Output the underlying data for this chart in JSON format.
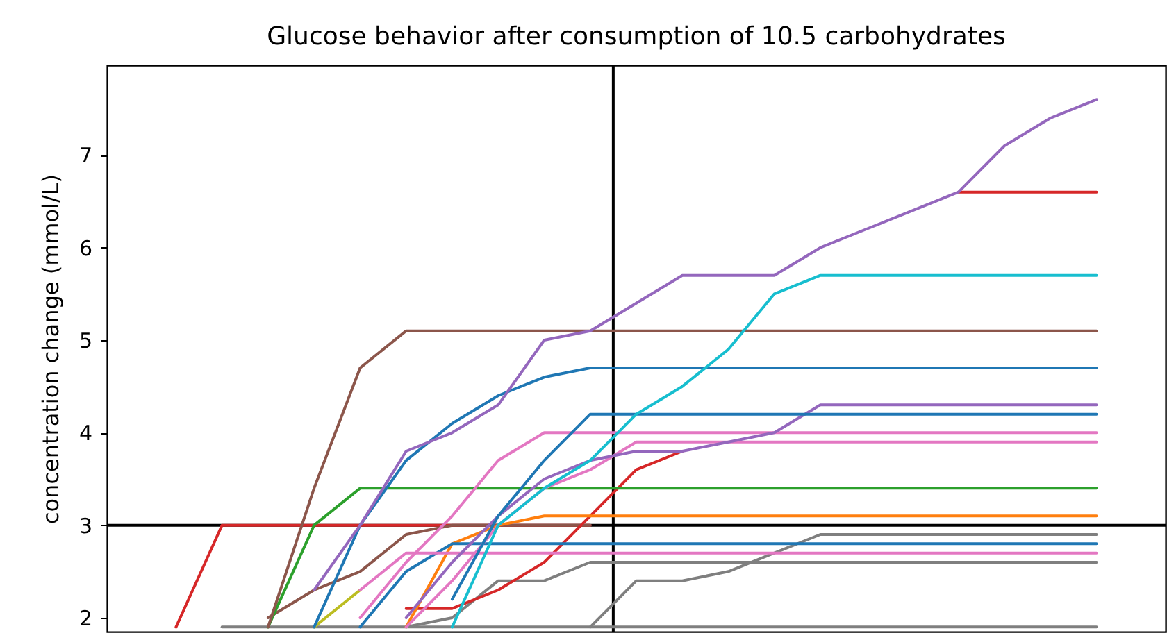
{
  "chart_data": {
    "type": "line",
    "title": "Glucose behavior after consumption of 10.5 carbohydrates",
    "ylabel": "concentration change (mmol/L)",
    "categories": [
      null,
      null,
      null,
      null,
      null,
      null,
      null,
      null,
      null,
      null,
      null,
      null,
      null,
      null,
      null,
      null,
      null,
      null,
      null,
      null,
      null,
      null,
      null
    ],
    "ylim": [
      1.85,
      7.97
    ],
    "yticks": [
      2,
      3,
      4,
      5,
      6,
      7
    ],
    "tick_labels": "y",
    "grid": false,
    "line_style": "solid",
    "marker": "none",
    "ref_lines": [
      {
        "axis": "y",
        "value": 3,
        "color": "#000000"
      }
    ],
    "series": [
      {
        "color": "#7f7f7f",
        "values": [
          null,
          null,
          1.9,
          1.9,
          1.9,
          1.9,
          1.9,
          1.9,
          1.9,
          1.9,
          1.9,
          1.9,
          1.9,
          1.9,
          1.9,
          1.9,
          1.9,
          1.9,
          1.9,
          1.9,
          1.9,
          1.9,
          null
        ]
      },
      {
        "color": "#7f7f7f",
        "values": [
          null,
          null,
          null,
          null,
          null,
          null,
          null,
          null,
          null,
          null,
          1.9,
          2.4,
          2.4,
          2.5,
          2.7,
          2.9,
          2.9,
          2.9,
          2.9,
          2.9,
          2.9,
          2.9,
          null
        ]
      },
      {
        "color": "#7f7f7f",
        "values": [
          null,
          null,
          null,
          null,
          null,
          null,
          1.9,
          2.0,
          2.4,
          2.4,
          2.6,
          2.6,
          2.6,
          2.6,
          2.6,
          2.6,
          2.6,
          2.6,
          2.6,
          2.6,
          2.6,
          2.6,
          null
        ]
      },
      {
        "color": "#bcbd22",
        "values": [
          null,
          null,
          null,
          null,
          1.9,
          2.3,
          null,
          null,
          null,
          null,
          null,
          null,
          null,
          null,
          null,
          null,
          null,
          null,
          null,
          null,
          null,
          null,
          null
        ]
      },
      {
        "color": "#d62728",
        "values": [
          null,
          1.9,
          3.0,
          3.0,
          3.0,
          3.0,
          3.0,
          3.0,
          3.0,
          3.0,
          3.0,
          null,
          null,
          null,
          null,
          null,
          null,
          null,
          null,
          null,
          null,
          null,
          null
        ]
      },
      {
        "color": "#8c564b",
        "values": [
          null,
          null,
          null,
          2.0,
          2.3,
          2.5,
          2.9,
          3.0,
          3.0,
          3.0,
          3.0,
          null,
          null,
          null,
          null,
          null,
          null,
          null,
          null,
          null,
          null,
          null,
          null
        ]
      },
      {
        "color": "#d62728",
        "values": [
          null,
          null,
          null,
          null,
          null,
          null,
          2.1,
          2.1,
          2.3,
          2.6,
          3.1,
          3.6,
          3.8,
          null,
          null,
          null,
          null,
          null,
          null,
          null,
          null,
          null,
          null
        ]
      },
      {
        "color": "#ff7f0e",
        "values": [
          null,
          null,
          null,
          null,
          null,
          null,
          1.9,
          2.8,
          3.0,
          3.1,
          3.1,
          3.1,
          3.1,
          3.1,
          3.1,
          3.1,
          3.1,
          3.1,
          3.1,
          3.1,
          3.1,
          3.1,
          null
        ]
      },
      {
        "color": "#1f77b4",
        "values": [
          null,
          null,
          null,
          null,
          null,
          1.9,
          2.5,
          2.8,
          2.8,
          2.8,
          2.8,
          2.8,
          2.8,
          2.8,
          2.8,
          2.8,
          2.8,
          2.8,
          2.8,
          2.8,
          2.8,
          2.8,
          null
        ]
      },
      {
        "color": "#e377c2",
        "values": [
          null,
          null,
          null,
          null,
          null,
          2.3,
          2.7,
          2.7,
          2.7,
          2.7,
          2.7,
          2.7,
          2.7,
          2.7,
          2.7,
          2.7,
          2.7,
          2.7,
          2.7,
          2.7,
          2.7,
          2.7,
          null
        ]
      },
      {
        "color": "#2ca02c",
        "values": [
          null,
          null,
          null,
          1.9,
          3.0,
          3.4,
          3.4,
          3.4,
          3.4,
          3.4,
          3.4,
          3.4,
          3.4,
          3.4,
          3.4,
          3.4,
          3.4,
          3.4,
          3.4,
          3.4,
          3.4,
          3.4,
          null
        ]
      },
      {
        "color": "#e377c2",
        "values": [
          null,
          null,
          null,
          null,
          null,
          2.0,
          2.6,
          3.1,
          3.7,
          4.0,
          4.0,
          4.0,
          4.0,
          4.0,
          4.0,
          4.0,
          4.0,
          4.0,
          4.0,
          4.0,
          4.0,
          4.0,
          null
        ]
      },
      {
        "color": "#e377c2",
        "values": [
          null,
          null,
          null,
          null,
          null,
          null,
          1.9,
          2.4,
          3.0,
          3.4,
          3.6,
          3.9,
          3.9,
          3.9,
          3.9,
          3.9,
          3.9,
          3.9,
          3.9,
          3.9,
          3.9,
          3.9,
          null
        ]
      },
      {
        "color": "#9467bd",
        "values": [
          null,
          null,
          null,
          null,
          null,
          null,
          2.0,
          2.6,
          3.1,
          3.5,
          3.7,
          3.8,
          3.8,
          3.9,
          4.0,
          4.3,
          4.3,
          4.3,
          4.3,
          4.3,
          4.3,
          4.3,
          null
        ]
      },
      {
        "color": "#1f77b4",
        "values": [
          null,
          null,
          null,
          null,
          null,
          null,
          null,
          2.2,
          3.1,
          3.7,
          4.2,
          4.2,
          4.2,
          4.2,
          4.2,
          4.2,
          4.2,
          4.2,
          4.2,
          4.2,
          4.2,
          4.2,
          null
        ]
      },
      {
        "color": "#1f77b4",
        "values": [
          null,
          null,
          null,
          null,
          1.9,
          3.0,
          3.7,
          4.1,
          4.4,
          4.6,
          4.7,
          4.7,
          4.7,
          4.7,
          4.7,
          4.7,
          4.7,
          4.7,
          4.7,
          4.7,
          4.7,
          4.7,
          null
        ]
      },
      {
        "color": "#8c564b",
        "values": [
          null,
          null,
          null,
          1.9,
          3.4,
          4.7,
          5.1,
          5.1,
          5.1,
          5.1,
          5.1,
          5.1,
          5.1,
          5.1,
          5.1,
          5.1,
          5.1,
          5.1,
          5.1,
          5.1,
          5.1,
          5.1,
          null
        ]
      },
      {
        "color": "#17becf",
        "values": [
          null,
          null,
          null,
          null,
          null,
          null,
          null,
          1.9,
          3.0,
          3.4,
          3.7,
          4.2,
          4.5,
          4.9,
          5.5,
          5.7,
          5.7,
          5.7,
          5.7,
          5.7,
          5.7,
          5.7,
          null
        ]
      },
      {
        "color": "#d62728",
        "values": [
          null,
          null,
          null,
          null,
          null,
          null,
          null,
          null,
          null,
          null,
          null,
          null,
          null,
          null,
          null,
          null,
          null,
          null,
          6.6,
          6.6,
          6.6,
          6.6,
          null
        ]
      },
      {
        "color": "#9467bd",
        "values": [
          null,
          null,
          null,
          null,
          2.3,
          3.0,
          3.8,
          4.0,
          4.3,
          5.0,
          5.1,
          5.4,
          5.7,
          5.7,
          5.7,
          6.0,
          6.2,
          6.4,
          6.6,
          7.1,
          7.4,
          7.6,
          null
        ]
      }
    ]
  }
}
